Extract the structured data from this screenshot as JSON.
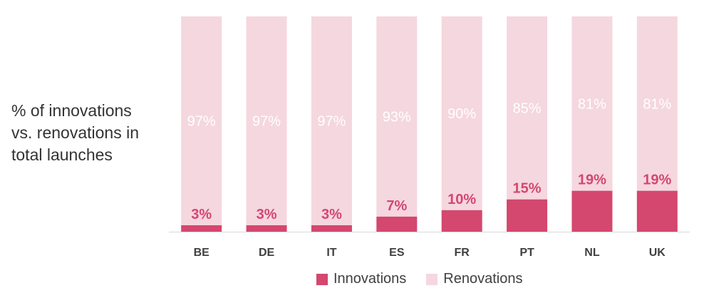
{
  "title_lines": [
    "% of innovations",
    "vs. renovations in",
    "total launches"
  ],
  "chart_data": {
    "type": "bar",
    "stacked": true,
    "categories": [
      "BE",
      "DE",
      "IT",
      "ES",
      "FR",
      "PT",
      "NL",
      "UK"
    ],
    "series": [
      {
        "name": "Innovations",
        "values": [
          3,
          3,
          3,
          7,
          10,
          15,
          19,
          19
        ],
        "color": "#d4476f",
        "labels": [
          "3%",
          "3%",
          "3%",
          "7%",
          "10%",
          "15%",
          "19%",
          "19%"
        ]
      },
      {
        "name": "Renovations",
        "values": [
          97,
          97,
          97,
          93,
          90,
          85,
          81,
          81
        ],
        "color": "#f5d7df",
        "labels": [
          "97%",
          "97%",
          "97%",
          "93%",
          "90%",
          "85%",
          "81%",
          "81%"
        ]
      }
    ],
    "ylim": [
      0,
      100
    ],
    "grid": false,
    "legend_position": "bottom"
  }
}
